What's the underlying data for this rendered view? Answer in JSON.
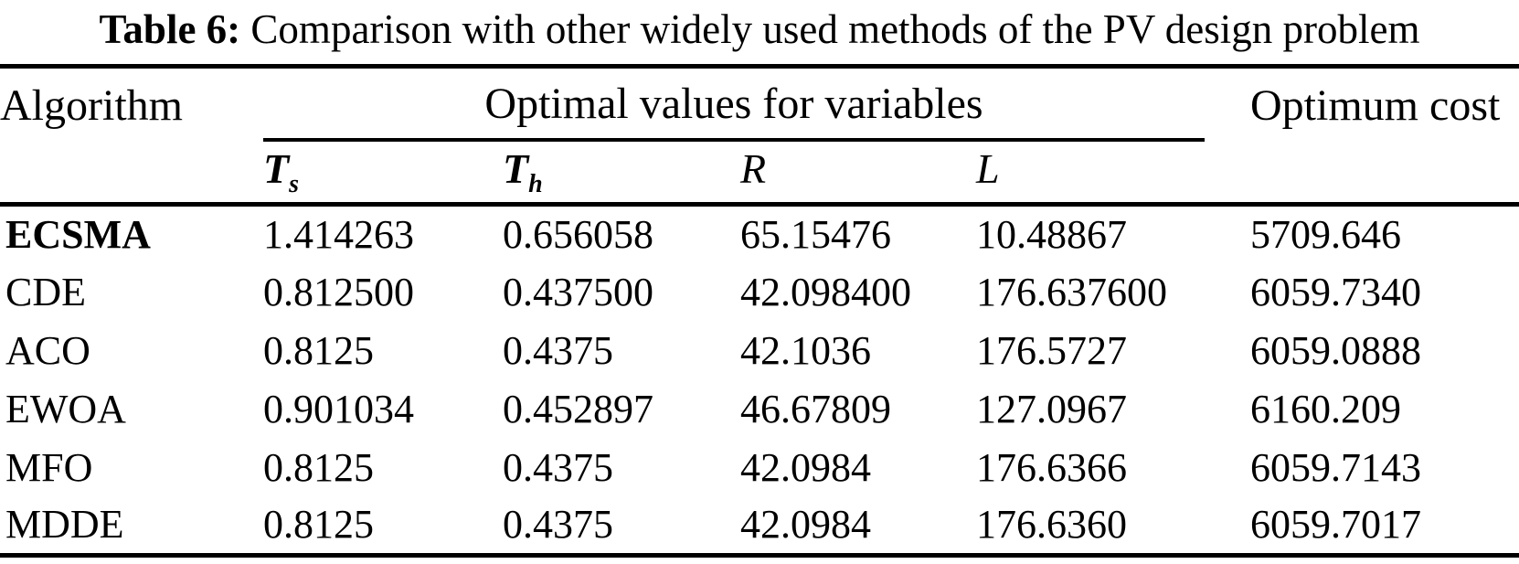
{
  "caption": {
    "label": "Table 6:",
    "text": " Comparison with other widely used methods of the PV design problem"
  },
  "table": {
    "col1_header": "Algorithm",
    "group_header": "Optimal values for variables",
    "cost_header": "Optimum cost",
    "vars": [
      {
        "base": "T",
        "sub": "s"
      },
      {
        "base": "T",
        "sub": "h"
      },
      {
        "base": "R",
        "sub": ""
      },
      {
        "base": "L",
        "sub": ""
      }
    ],
    "rows": [
      {
        "algorithm": "ECSMA",
        "ts": "1.414263",
        "th": "0.656058",
        "r": "65.15476",
        "l": "10.48867",
        "cost": "5709.646",
        "emphasis": true
      },
      {
        "algorithm": "CDE",
        "ts": "0.812500",
        "th": "0.437500",
        "r": "42.098400",
        "l": "176.637600",
        "cost": "6059.7340",
        "emphasis": false
      },
      {
        "algorithm": "ACO",
        "ts": "0.8125",
        "th": "0.4375",
        "r": "42.1036",
        "l": "176.5727",
        "cost": "6059.0888",
        "emphasis": false
      },
      {
        "algorithm": "EWOA",
        "ts": "0.901034",
        "th": "0.452897",
        "r": "46.67809",
        "l": "127.0967",
        "cost": "6160.209",
        "emphasis": false
      },
      {
        "algorithm": "MFO",
        "ts": "0.8125",
        "th": "0.4375",
        "r": "42.0984",
        "l": "176.6366",
        "cost": "6059.7143",
        "emphasis": false
      },
      {
        "algorithm": "MDDE",
        "ts": "0.8125",
        "th": "0.4375",
        "r": "42.0984",
        "l": "176.6360",
        "cost": "6059.7017",
        "emphasis": false
      }
    ]
  },
  "colors": {
    "text": "#000000",
    "background": "#ffffff",
    "rule": "#000000"
  }
}
